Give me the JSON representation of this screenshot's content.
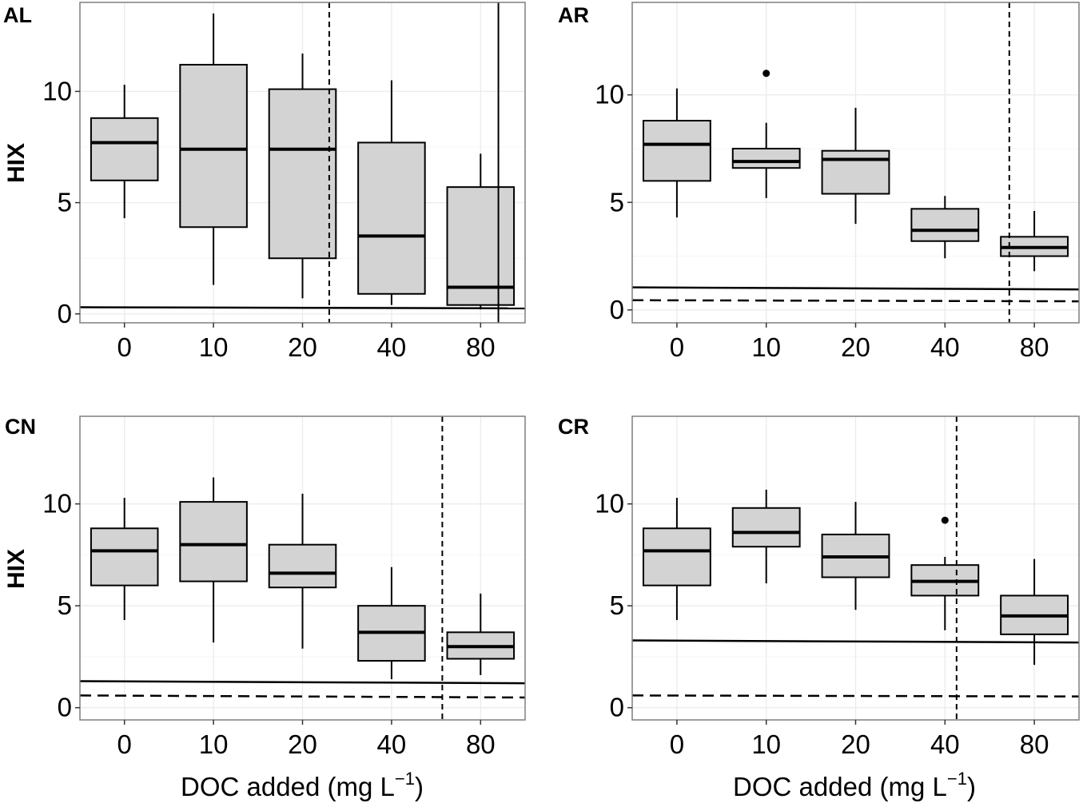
{
  "chart_data": [
    {
      "type": "box",
      "panel": "AL",
      "categories": [
        "0",
        "10",
        "20",
        "40",
        "80"
      ],
      "ylabel": "HIX",
      "xlabel": "",
      "ylim": [
        -0.4,
        14.0
      ],
      "yticks": [
        "0",
        "5",
        "10"
      ],
      "grid": true,
      "boxes": [
        {
          "category": "0",
          "whisker_low": 4.3,
          "q1": 6.0,
          "median": 7.7,
          "q3": 8.8,
          "whisker_high": 10.3,
          "outliers": []
        },
        {
          "category": "10",
          "whisker_low": 1.3,
          "q1": 3.9,
          "median": 7.4,
          "q3": 11.2,
          "whisker_high": 13.5,
          "outliers": []
        },
        {
          "category": "20",
          "whisker_low": 0.7,
          "q1": 2.5,
          "median": 7.4,
          "q3": 10.1,
          "whisker_high": 11.7,
          "outliers": []
        },
        {
          "category": "40",
          "whisker_low": 0.4,
          "q1": 0.9,
          "median": 3.5,
          "q3": 7.7,
          "whisker_high": 10.5,
          "outliers": []
        },
        {
          "category": "80",
          "whisker_low": 0.2,
          "q1": 0.4,
          "median": 1.2,
          "q3": 5.7,
          "whisker_high": 7.2,
          "outliers": []
        }
      ],
      "hlines": [
        {
          "y_start": 0.3,
          "y_end": 0.25,
          "style": "solid"
        }
      ],
      "vline": {
        "x": 2.3,
        "style": "dashed"
      },
      "vline2": {
        "x": 4.2,
        "style": "solid"
      }
    },
    {
      "type": "box",
      "panel": "AR",
      "categories": [
        "0",
        "10",
        "20",
        "40",
        "80"
      ],
      "ylabel": "",
      "xlabel": "",
      "ylim": [
        -0.6,
        14.3
      ],
      "yticks": [
        "0",
        "5",
        "10"
      ],
      "grid": true,
      "boxes": [
        {
          "category": "0",
          "whisker_low": 4.3,
          "q1": 6.0,
          "median": 7.7,
          "q3": 8.8,
          "whisker_high": 10.3,
          "outliers": []
        },
        {
          "category": "10",
          "whisker_low": 5.2,
          "q1": 6.6,
          "median": 6.9,
          "q3": 7.5,
          "whisker_high": 8.7,
          "outliers": [
            11.0
          ]
        },
        {
          "category": "20",
          "whisker_low": 4.0,
          "q1": 5.4,
          "median": 7.0,
          "q3": 7.4,
          "whisker_high": 9.4,
          "outliers": []
        },
        {
          "category": "40",
          "whisker_low": 2.4,
          "q1": 3.2,
          "median": 3.7,
          "q3": 4.7,
          "whisker_high": 5.3,
          "outliers": []
        },
        {
          "category": "80",
          "whisker_low": 1.8,
          "q1": 2.5,
          "median": 2.9,
          "q3": 3.4,
          "whisker_high": 4.6,
          "outliers": []
        }
      ],
      "hlines": [
        {
          "y_start": 1.05,
          "y_end": 0.95,
          "style": "solid"
        },
        {
          "y_start": 0.45,
          "y_end": 0.4,
          "style": "dashed"
        }
      ],
      "vline": {
        "x": 3.72,
        "style": "dashed"
      }
    },
    {
      "type": "box",
      "panel": "CN",
      "categories": [
        "0",
        "10",
        "20",
        "40",
        "80"
      ],
      "ylabel": "HIX",
      "xlabel": "DOC added (mg L",
      "xlabel_superscript": "−1",
      "xlabel_close": ")",
      "ylim": [
        -0.6,
        14.3
      ],
      "yticks": [
        "0",
        "5",
        "10"
      ],
      "grid": true,
      "boxes": [
        {
          "category": "0",
          "whisker_low": 4.3,
          "q1": 6.0,
          "median": 7.7,
          "q3": 8.8,
          "whisker_high": 10.3,
          "outliers": []
        },
        {
          "category": "10",
          "whisker_low": 3.2,
          "q1": 6.2,
          "median": 8.0,
          "q3": 10.1,
          "whisker_high": 11.3,
          "outliers": []
        },
        {
          "category": "20",
          "whisker_low": 2.9,
          "q1": 5.9,
          "median": 6.6,
          "q3": 8.0,
          "whisker_high": 10.5,
          "outliers": []
        },
        {
          "category": "40",
          "whisker_low": 1.4,
          "q1": 2.3,
          "median": 3.7,
          "q3": 5.0,
          "whisker_high": 6.9,
          "outliers": []
        },
        {
          "category": "80",
          "whisker_low": 1.6,
          "q1": 2.4,
          "median": 3.0,
          "q3": 3.7,
          "whisker_high": 5.6,
          "outliers": []
        }
      ],
      "hlines": [
        {
          "y_start": 1.3,
          "y_end": 1.2,
          "style": "solid"
        },
        {
          "y_start": 0.6,
          "y_end": 0.5,
          "style": "dashed"
        }
      ],
      "vline": {
        "x": 3.57,
        "style": "dashed"
      }
    },
    {
      "type": "box",
      "panel": "CR",
      "categories": [
        "0",
        "10",
        "20",
        "40",
        "80"
      ],
      "ylabel": "",
      "xlabel": "DOC added (mg L",
      "xlabel_superscript": "−1",
      "xlabel_close": ")",
      "ylim": [
        -0.6,
        14.3
      ],
      "yticks": [
        "0",
        "5",
        "10"
      ],
      "grid": true,
      "boxes": [
        {
          "category": "0",
          "whisker_low": 4.3,
          "q1": 6.0,
          "median": 7.7,
          "q3": 8.8,
          "whisker_high": 10.3,
          "outliers": []
        },
        {
          "category": "10",
          "whisker_low": 6.1,
          "q1": 7.9,
          "median": 8.6,
          "q3": 9.8,
          "whisker_high": 10.7,
          "outliers": []
        },
        {
          "category": "20",
          "whisker_low": 4.8,
          "q1": 6.4,
          "median": 7.4,
          "q3": 8.5,
          "whisker_high": 10.1,
          "outliers": []
        },
        {
          "category": "40",
          "whisker_low": 3.8,
          "q1": 5.5,
          "median": 6.2,
          "q3": 7.0,
          "whisker_high": 7.4,
          "outliers": [
            9.2
          ]
        },
        {
          "category": "80",
          "whisker_low": 2.1,
          "q1": 3.6,
          "median": 4.5,
          "q3": 5.5,
          "whisker_high": 7.3,
          "outliers": []
        }
      ],
      "hlines": [
        {
          "y_start": 3.3,
          "y_end": 3.2,
          "style": "solid"
        },
        {
          "y_start": 0.6,
          "y_end": 0.55,
          "style": "dashed"
        }
      ],
      "vline": {
        "x": 3.13,
        "style": "dashed"
      }
    }
  ],
  "colors": {
    "box_fill": "#d3d3d3",
    "stroke": "#000000",
    "grid": "#ebebeb",
    "panel_border": "#7f7f7f"
  }
}
